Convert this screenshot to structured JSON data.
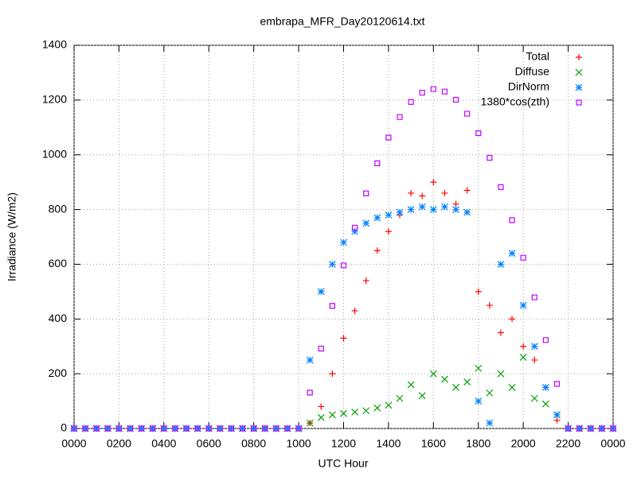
{
  "chart_data": {
    "type": "scatter",
    "title": "embrapa_MFR_Day20120614.txt",
    "x_label": "UTC Hour",
    "y_label": "Irradiance (W/m2)",
    "xlim": [
      0,
      24
    ],
    "xticks": [
      {
        "value": 0,
        "label": "0000"
      },
      {
        "value": 2,
        "label": "0200"
      },
      {
        "value": 4,
        "label": "0400"
      },
      {
        "value": 6,
        "label": "0600"
      },
      {
        "value": 8,
        "label": "0800"
      },
      {
        "value": 10,
        "label": "1000"
      },
      {
        "value": 12,
        "label": "1200"
      },
      {
        "value": 14,
        "label": "1400"
      },
      {
        "value": 16,
        "label": "1600"
      },
      {
        "value": 18,
        "label": "1800"
      },
      {
        "value": 20,
        "label": "2000"
      },
      {
        "value": 22,
        "label": "2200"
      },
      {
        "value": 24,
        "label": "0000"
      }
    ],
    "ylim": [
      0,
      1400
    ],
    "yticks": [
      0,
      200,
      400,
      600,
      800,
      1000,
      1200,
      1400
    ],
    "grid": true,
    "legend": "top-right",
    "x": [
      0,
      0.5,
      1,
      1.5,
      2,
      2.5,
      3,
      3.5,
      4,
      4.5,
      5,
      5.5,
      6,
      6.5,
      7,
      7.5,
      8,
      8.5,
      9,
      9.5,
      10,
      10.5,
      11,
      11.5,
      12,
      12.5,
      13,
      13.5,
      14,
      14.5,
      15,
      15.5,
      16,
      16.5,
      17,
      17.5,
      18,
      18.5,
      19,
      19.5,
      20,
      20.5,
      21,
      21.5,
      22,
      22.5,
      23,
      23.5,
      24
    ],
    "series": [
      {
        "name": "Total",
        "color": "#ff0000",
        "marker": "plus",
        "values": [
          0,
          0,
          0,
          0,
          0,
          0,
          0,
          0,
          0,
          0,
          0,
          0,
          0,
          0,
          0,
          0,
          0,
          0,
          0,
          0,
          0,
          20,
          80,
          200,
          330,
          430,
          540,
          650,
          720,
          780,
          860,
          850,
          900,
          860,
          820,
          870,
          500,
          450,
          350,
          400,
          300,
          250,
          150,
          30,
          0,
          0,
          0,
          0,
          0
        ]
      },
      {
        "name": "Diffuse",
        "color": "#00a000",
        "marker": "cross",
        "values": [
          0,
          0,
          0,
          0,
          0,
          0,
          0,
          0,
          0,
          0,
          0,
          0,
          0,
          0,
          0,
          0,
          0,
          0,
          0,
          0,
          0,
          20,
          40,
          50,
          55,
          60,
          65,
          75,
          85,
          110,
          160,
          120,
          200,
          180,
          150,
          170,
          220,
          130,
          200,
          150,
          260,
          110,
          90,
          50,
          0,
          0,
          0,
          0,
          0
        ]
      },
      {
        "name": "DirNorm",
        "color": "#0080ff",
        "marker": "star",
        "values": [
          0,
          0,
          0,
          0,
          0,
          0,
          0,
          0,
          0,
          0,
          0,
          0,
          0,
          0,
          0,
          0,
          0,
          0,
          0,
          0,
          0,
          250,
          500,
          600,
          680,
          720,
          750,
          770,
          780,
          790,
          800,
          810,
          800,
          810,
          800,
          790,
          100,
          20,
          600,
          640,
          450,
          300,
          150,
          50,
          0,
          0,
          0,
          0,
          0
        ]
      },
      {
        "name": "1380*cos(zth)",
        "color": "#c000ff",
        "marker": "square",
        "values": [
          0,
          0,
          0,
          0,
          0,
          0,
          0,
          0,
          0,
          0,
          0,
          0,
          0,
          0,
          0,
          0,
          0,
          0,
          0,
          0,
          0,
          131,
          292,
          448,
          596,
          734,
          859,
          969,
          1063,
          1138,
          1193,
          1227,
          1240,
          1231,
          1201,
          1150,
          1079,
          989,
          882,
          761,
          624,
          479,
          323,
          163,
          0,
          0,
          0,
          0,
          0
        ]
      }
    ]
  }
}
